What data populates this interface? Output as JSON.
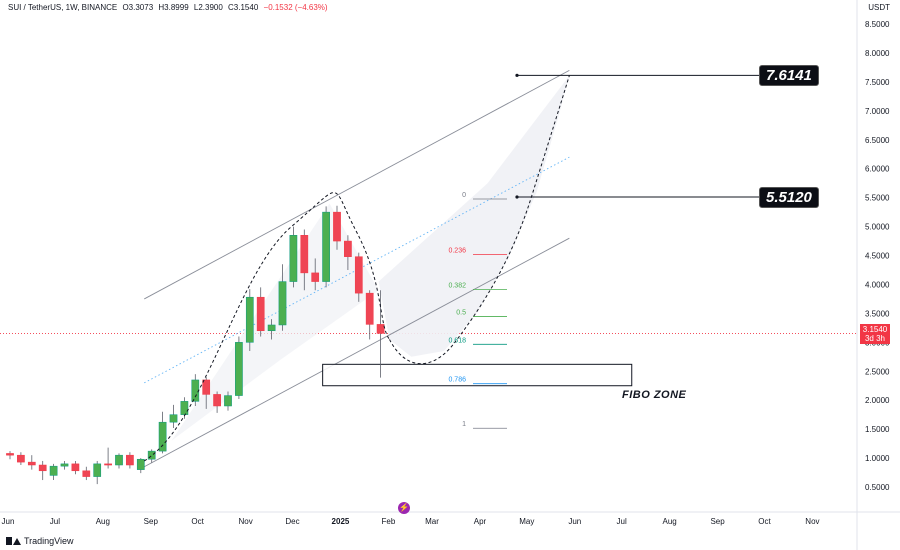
{
  "header": {
    "symbol": "SUI / TetherUS, 1W, BINANCE",
    "open": "O3.3073",
    "high": "H3.8999",
    "low": "L2.3900",
    "close": "C3.1540",
    "change": "−0.1532 (−4.63%)"
  },
  "axis": {
    "unit": "USDT"
  },
  "current_price": {
    "value": "3.1540",
    "countdown": "3d 3h"
  },
  "annotations": {
    "target_high": "7.6141",
    "target_mid": "5.5120",
    "fibo_zone": "FIBO ZONE"
  },
  "fib_levels": [
    {
      "label": "0",
      "price": 5.512,
      "color": "#787b86"
    },
    {
      "label": "0.236",
      "price": 4.55,
      "color": "#f23645"
    },
    {
      "label": "0.382",
      "price": 3.95,
      "color": "#4caf50"
    },
    {
      "label": "0.5",
      "price": 3.48,
      "color": "#4caf50"
    },
    {
      "label": "0.618",
      "price": 3.0,
      "color": "#089981"
    },
    {
      "label": "0.786",
      "price": 2.32,
      "color": "#2196f3"
    },
    {
      "label": "1",
      "price": 1.55,
      "color": "#787b86"
    }
  ],
  "brand": {
    "name": "TradingView"
  },
  "event_icon": {
    "glyph": "⚡"
  },
  "chart_data": {
    "type": "candlestick",
    "title": "SUI / TetherUS, 1W, BINANCE",
    "ylabel": "USDT",
    "ylim": [
      0.3,
      8.6
    ],
    "y_ticks": [
      "8.5000",
      "8.0000",
      "7.5000",
      "7.0000",
      "6.5000",
      "6.0000",
      "5.5000",
      "5.0000",
      "4.5000",
      "4.0000",
      "3.5000",
      "3.0000",
      "2.5000",
      "2.0000",
      "1.5000",
      "1.0000",
      "0.5000"
    ],
    "x_ticks": [
      {
        "label": "Jun",
        "week": 0
      },
      {
        "label": "Jul",
        "week": 4.3
      },
      {
        "label": "Aug",
        "week": 8.7
      },
      {
        "label": "Sep",
        "week": 13.1
      },
      {
        "label": "Oct",
        "week": 17.4
      },
      {
        "label": "Nov",
        "week": 21.8
      },
      {
        "label": "Dec",
        "week": 26.1
      },
      {
        "label": "2025",
        "week": 30.5
      },
      {
        "label": "Feb",
        "week": 34.9
      },
      {
        "label": "Mar",
        "week": 38.9
      },
      {
        "label": "Apr",
        "week": 43.3
      },
      {
        "label": "May",
        "week": 47.6
      },
      {
        "label": "Jun",
        "week": 52.0
      },
      {
        "label": "Jul",
        "week": 56.3
      },
      {
        "label": "Aug",
        "week": 60.7
      },
      {
        "label": "Sep",
        "week": 65.1
      },
      {
        "label": "Oct",
        "week": 69.4
      },
      {
        "label": "Nov",
        "week": 73.8
      }
    ],
    "candles": [
      {
        "o": 1.08,
        "h": 1.12,
        "l": 0.98,
        "c": 1.05
      },
      {
        "o": 1.05,
        "h": 1.1,
        "l": 0.88,
        "c": 0.93
      },
      {
        "o": 0.93,
        "h": 1.05,
        "l": 0.8,
        "c": 0.88
      },
      {
        "o": 0.88,
        "h": 0.95,
        "l": 0.62,
        "c": 0.78
      },
      {
        "o": 0.7,
        "h": 0.9,
        "l": 0.62,
        "c": 0.86
      },
      {
        "o": 0.86,
        "h": 0.95,
        "l": 0.8,
        "c": 0.9
      },
      {
        "o": 0.9,
        "h": 0.95,
        "l": 0.72,
        "c": 0.78
      },
      {
        "o": 0.78,
        "h": 0.85,
        "l": 0.62,
        "c": 0.68
      },
      {
        "o": 0.68,
        "h": 0.95,
        "l": 0.55,
        "c": 0.9
      },
      {
        "o": 0.9,
        "h": 1.18,
        "l": 0.82,
        "c": 0.88
      },
      {
        "o": 0.88,
        "h": 1.08,
        "l": 0.82,
        "c": 1.05
      },
      {
        "o": 1.05,
        "h": 1.1,
        "l": 0.82,
        "c": 0.88
      },
      {
        "o": 0.8,
        "h": 1.0,
        "l": 0.74,
        "c": 0.98
      },
      {
        "o": 0.98,
        "h": 1.15,
        "l": 0.92,
        "c": 1.12
      },
      {
        "o": 1.12,
        "h": 1.8,
        "l": 1.08,
        "c": 1.62
      },
      {
        "o": 1.62,
        "h": 1.92,
        "l": 1.52,
        "c": 1.75
      },
      {
        "o": 1.75,
        "h": 2.05,
        "l": 1.68,
        "c": 1.98
      },
      {
        "o": 1.98,
        "h": 2.45,
        "l": 1.9,
        "c": 2.35
      },
      {
        "o": 2.35,
        "h": 2.4,
        "l": 1.85,
        "c": 2.1
      },
      {
        "o": 2.1,
        "h": 2.15,
        "l": 1.78,
        "c": 1.9
      },
      {
        "o": 1.9,
        "h": 2.15,
        "l": 1.82,
        "c": 2.08
      },
      {
        "o": 2.08,
        "h": 3.1,
        "l": 2.02,
        "c": 3.0
      },
      {
        "o": 3.0,
        "h": 3.92,
        "l": 2.85,
        "c": 3.78
      },
      {
        "o": 3.78,
        "h": 3.95,
        "l": 3.1,
        "c": 3.2
      },
      {
        "o": 3.2,
        "h": 3.4,
        "l": 3.05,
        "c": 3.3
      },
      {
        "o": 3.3,
        "h": 4.35,
        "l": 3.2,
        "c": 4.05
      },
      {
        "o": 4.05,
        "h": 5.0,
        "l": 3.95,
        "c": 4.85
      },
      {
        "o": 4.85,
        "h": 4.95,
        "l": 3.9,
        "c": 4.2
      },
      {
        "o": 4.2,
        "h": 4.45,
        "l": 3.9,
        "c": 4.05
      },
      {
        "o": 4.05,
        "h": 5.35,
        "l": 3.95,
        "c": 5.25
      },
      {
        "o": 5.25,
        "h": 5.36,
        "l": 4.6,
        "c": 4.75
      },
      {
        "o": 4.75,
        "h": 4.85,
        "l": 4.25,
        "c": 4.48
      },
      {
        "o": 4.48,
        "h": 4.55,
        "l": 3.7,
        "c": 3.85
      },
      {
        "o": 3.85,
        "h": 3.9,
        "l": 3.05,
        "c": 3.31
      },
      {
        "o": 3.31,
        "h": 3.9,
        "l": 2.39,
        "c": 3.154
      }
    ],
    "channel": {
      "upper": [
        {
          "week": 12.5,
          "price": 3.75
        },
        {
          "week": 51.5,
          "price": 7.7
        }
      ],
      "lower": [
        {
          "week": 12.5,
          "price": 0.85
        },
        {
          "week": 51.5,
          "price": 4.8
        }
      ],
      "middle": [
        {
          "week": 12.5,
          "price": 2.3
        },
        {
          "week": 51.5,
          "price": 6.2
        }
      ]
    },
    "projection": [
      {
        "week": 35,
        "price": 3.05
      },
      {
        "week": 37,
        "price": 2.75
      },
      {
        "week": 40,
        "price": 2.85
      },
      {
        "week": 43,
        "price": 3.5
      },
      {
        "week": 46,
        "price": 4.5
      },
      {
        "week": 48.5,
        "price": 5.6
      },
      {
        "week": 50.5,
        "price": 6.9
      },
      {
        "week": 51.5,
        "price": 7.61
      }
    ],
    "fibo_zone_range": {
      "x_start": 28.5,
      "x_end": 57.5,
      "price_top": 2.62,
      "price_bottom": 2.25
    }
  }
}
